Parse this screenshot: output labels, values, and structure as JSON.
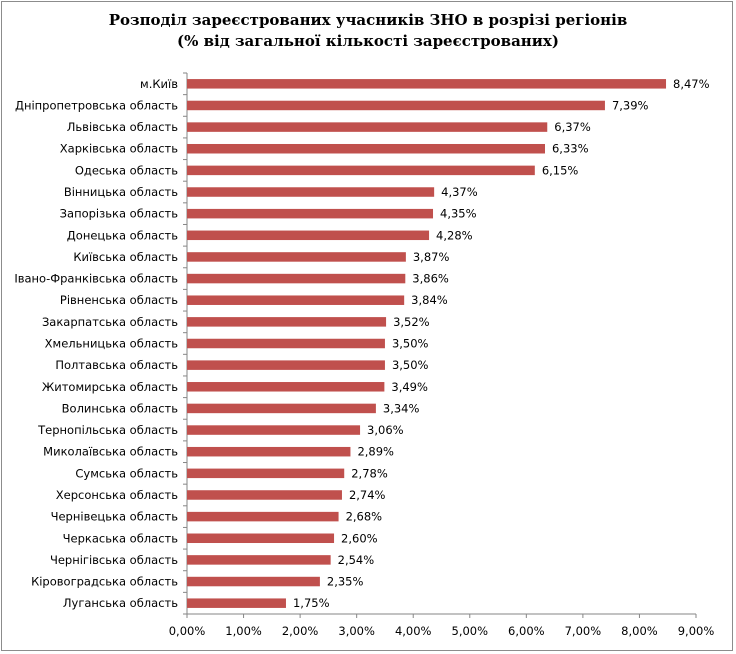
{
  "chart_data": {
    "type": "bar",
    "orientation": "horizontal",
    "title": "Розподіл зареєстрованих учасників ЗНО в розрізі регіонів",
    "subtitle": "(% від загальної кількості зареєстрованих)",
    "categories": [
      "м.Київ",
      "Дніпропетровська область",
      "Львівська область",
      "Харківська область",
      "Одеська область",
      "Вінницька область",
      "Запорізька область",
      "Донецька область",
      "Київська область",
      "Івано-Франківська область",
      "Рівненська область",
      "Закарпатська область",
      "Хмельницька область",
      "Полтавська область",
      "Житомирська область",
      "Волинська область",
      "Тернопільська область",
      "Миколаївська область",
      "Сумська область",
      "Херсонська область",
      "Чернівецька область",
      "Черкаська область",
      "Чернігівська область",
      "Кіровоградська область",
      "Луганська область"
    ],
    "values": [
      8.47,
      7.39,
      6.37,
      6.33,
      6.15,
      4.37,
      4.35,
      4.28,
      3.87,
      3.86,
      3.84,
      3.52,
      3.5,
      3.5,
      3.49,
      3.34,
      3.06,
      2.89,
      2.78,
      2.74,
      2.68,
      2.6,
      2.54,
      2.35,
      1.75
    ],
    "value_labels": [
      "8,47%",
      "7,39%",
      "6,37%",
      "6,33%",
      "6,15%",
      "4,37%",
      "4,35%",
      "4,28%",
      "3,87%",
      "3,86%",
      "3,84%",
      "3,52%",
      "3,50%",
      "3,50%",
      "3,49%",
      "3,34%",
      "3,06%",
      "2,89%",
      "2,78%",
      "2,74%",
      "2,68%",
      "2,60%",
      "2,54%",
      "2,35%",
      "1,75%"
    ],
    "xticks": [
      "0,00%",
      "1,00%",
      "2,00%",
      "3,00%",
      "4,00%",
      "5,00%",
      "6,00%",
      "7,00%",
      "8,00%",
      "9,00%"
    ],
    "xlim": [
      0,
      9
    ],
    "grid": false,
    "legend": "none",
    "bar_color": "#c0504d",
    "axis_color": "#868686"
  }
}
